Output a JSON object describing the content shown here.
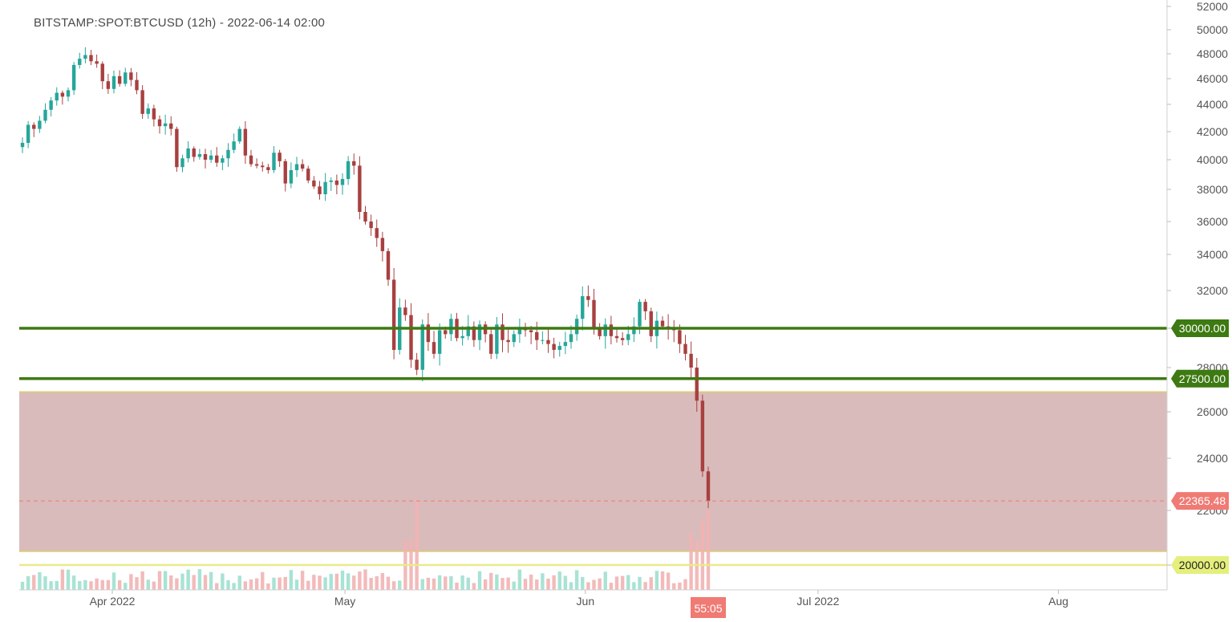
{
  "title": "BITSTAMP:SPOT:BTCUSD (12h) - 2022-06-14 02:00",
  "countdown": "55:05",
  "colors": {
    "up": "#26a69a",
    "down": "#a84040",
    "volume_up": "#9fe0cf",
    "volume_down": "#f2b3b3",
    "support_line": "#3d7a12",
    "zone_fill": "#d6b4b4",
    "zone_border": "#d8cf6a",
    "yellow_line": "#e9ea8a",
    "price_label": "#f07a74",
    "axis_text": "#555555"
  },
  "chart_data": {
    "type": "candlestick",
    "timeframe": "12h",
    "symbol": "BITSTAMP:SPOT:BTCUSD",
    "ylim": [
      19000,
      52000
    ],
    "y_ticks": [
      20000,
      22000,
      24000,
      26000,
      28000,
      30000,
      32000,
      34000,
      36000,
      38000,
      40000,
      42000,
      44000,
      46000,
      48000,
      50000,
      52000
    ],
    "x_ticks": [
      "Apr 2022",
      "May",
      "Jun",
      "Jul 2022",
      "Aug"
    ],
    "x_tick_dates": [
      "2022-04-01",
      "2022-05-01",
      "2022-06-01",
      "2022-07-01",
      "2022-08-01"
    ],
    "x_start": "2022-03-20",
    "x_end": "2022-08-15",
    "last_price": 22365.48,
    "horizontal_lines": [
      {
        "value": 30000,
        "label": "30000.00",
        "color": "#3d7a12"
      },
      {
        "value": 27500,
        "label": "27500.00",
        "color": "#3d7a12"
      },
      {
        "value": 20000,
        "label": "20000.00",
        "color": "#e9ea8a"
      }
    ],
    "zone": {
      "from": 20500,
      "to": 26900
    },
    "closes": [
      41200,
      42500,
      42200,
      42800,
      43600,
      44300,
      44900,
      44600,
      45100,
      47100,
      47600,
      47900,
      47400,
      47200,
      45800,
      45200,
      46200,
      45600,
      46500,
      45900,
      45100,
      43300,
      43700,
      42900,
      42400,
      42600,
      42200,
      39500,
      40100,
      40800,
      40200,
      40400,
      40000,
      40300,
      39800,
      40100,
      40700,
      41300,
      42200,
      40300,
      39700,
      39600,
      39500,
      39300,
      40500,
      39900,
      38400,
      39300,
      39700,
      39400,
      38600,
      38200,
      37700,
      38500,
      38600,
      38300,
      38700,
      39900,
      39600,
      36600,
      36000,
      35600,
      35000,
      34200,
      32600,
      28900,
      31100,
      30700,
      28400,
      27900,
      30200,
      29300,
      28700,
      29900,
      29700,
      30500,
      29500,
      29600,
      30100,
      29400,
      30200,
      29700,
      28700,
      30200,
      29400,
      29300,
      29700,
      30000,
      29900,
      29800,
      29400,
      29400,
      29200,
      28900,
      29100,
      29300,
      29700,
      30500,
      31700,
      31500,
      30000,
      29600,
      30200,
      29600,
      29500,
      29400,
      29700,
      30100,
      31400,
      30900,
      29600,
      30400,
      30100,
      30000,
      29900,
      29200,
      28700,
      28000,
      26500,
      23500,
      22365
    ]
  }
}
